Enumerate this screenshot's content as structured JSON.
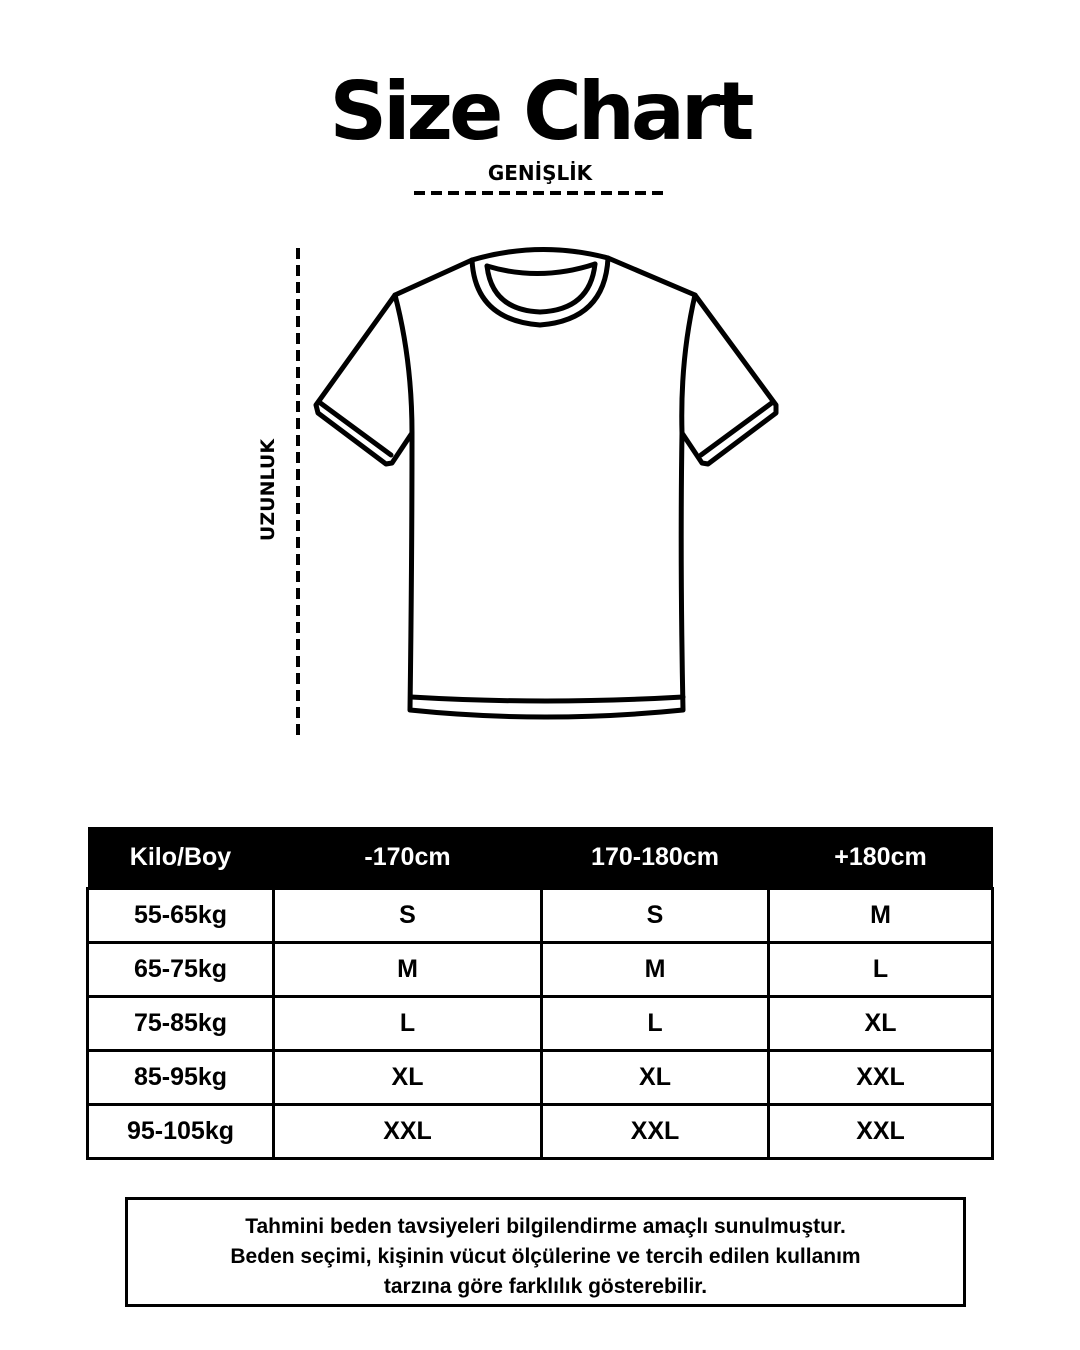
{
  "title": "Size Chart",
  "width_label": "GENİŞLİK",
  "length_label": "UZUNLUK",
  "illustration": "t-shirt-outline",
  "table": {
    "headers": [
      "Kilo/Boy",
      "-170cm",
      "170-180cm",
      "+180cm"
    ],
    "rows": [
      [
        "55-65kg",
        "S",
        "S",
        "M"
      ],
      [
        "65-75kg",
        "M",
        "M",
        "L"
      ],
      [
        "75-85kg",
        "L",
        "L",
        "XL"
      ],
      [
        "85-95kg",
        "XL",
        "XL",
        "XXL"
      ],
      [
        "95-105kg",
        "XXL",
        "XXL",
        "XXL"
      ]
    ]
  },
  "note": {
    "lines": [
      "Tahmini beden tavsiyeleri bilgilendirme amaçlı sunulmuştur.",
      "Beden seçimi, kişinin vücut ölçülerine ve tercih edilen kullanım",
      "tarzına göre farklılık gösterebilir."
    ]
  }
}
